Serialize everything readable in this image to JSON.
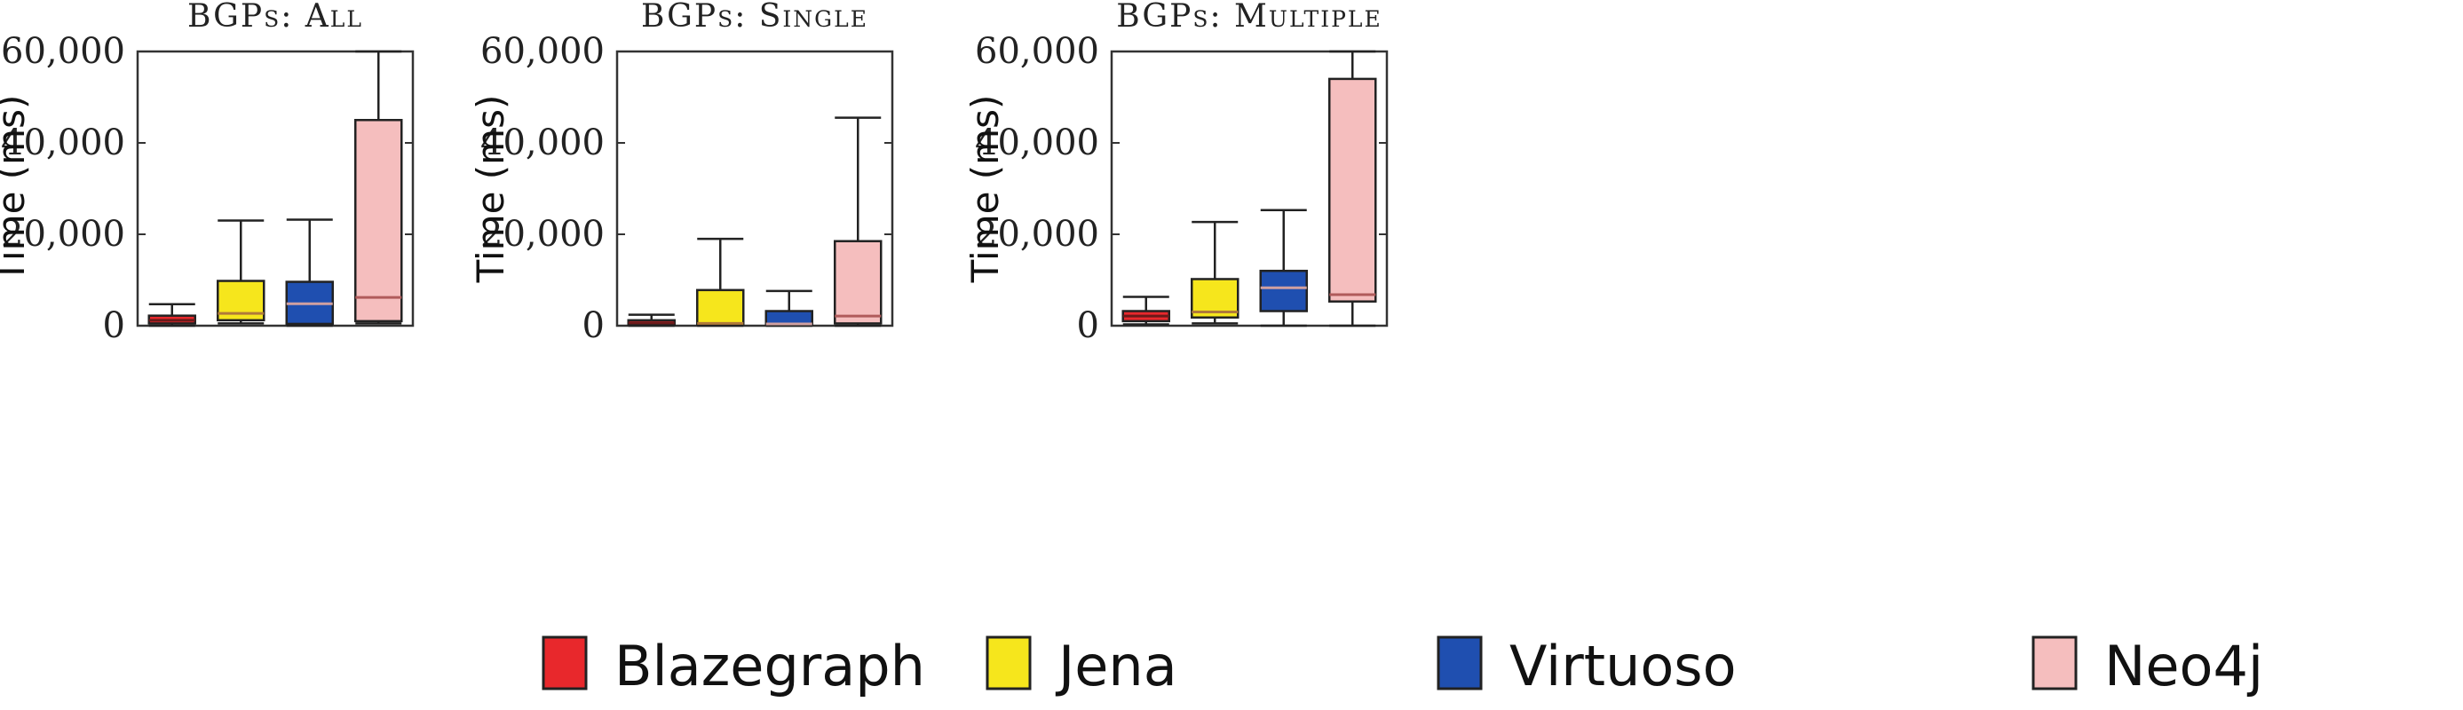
{
  "legend": [
    {
      "label": "Blazegraph",
      "color": "#e8282c"
    },
    {
      "label": "Jena",
      "color": "#f6e61c"
    },
    {
      "label": "Virtuoso",
      "color": "#1f4fb0"
    },
    {
      "label": "Neo4j",
      "color": "#f5bebe"
    }
  ],
  "chart_data": [
    {
      "type": "boxplot",
      "title": "BGPs: All",
      "ylabel": "Time (ms)",
      "ylim": [
        0,
        60000
      ],
      "yticks": [
        0,
        20000,
        40000,
        60000
      ],
      "ytick_labels": [
        "0",
        "20,000",
        "40,000",
        "60,000"
      ],
      "series": [
        {
          "name": "Blazegraph",
          "min": 0,
          "q1": 500,
          "median": 1200,
          "q3": 2200,
          "max": 4700
        },
        {
          "name": "Jena",
          "min": 500,
          "q1": 1200,
          "median": 2700,
          "q3": 9800,
          "max": 23000
        },
        {
          "name": "Virtuoso",
          "min": 0,
          "q1": 400,
          "median": 4800,
          "q3": 9600,
          "max": 23200
        },
        {
          "name": "Neo4j",
          "min": 500,
          "q1": 1000,
          "median": 6200,
          "q3": 45000,
          "max": 60000
        }
      ]
    },
    {
      "type": "boxplot",
      "title": "BGPs: Single",
      "ylabel": "Time (ms)",
      "ylim": [
        0,
        60000
      ],
      "yticks": [
        0,
        20000,
        40000,
        60000
      ],
      "ytick_labels": [
        "0",
        "20,000",
        "40,000",
        "60,000"
      ],
      "series": [
        {
          "name": "Blazegraph",
          "min": 0,
          "q1": 200,
          "median": 600,
          "q3": 1200,
          "max": 2400
        },
        {
          "name": "Jena",
          "min": 0,
          "q1": 300,
          "median": 500,
          "q3": 7800,
          "max": 19000
        },
        {
          "name": "Virtuoso",
          "min": 0,
          "q1": 200,
          "median": 400,
          "q3": 3200,
          "max": 7600
        },
        {
          "name": "Neo4j",
          "min": 0,
          "q1": 500,
          "median": 2100,
          "q3": 18500,
          "max": 45500
        }
      ]
    },
    {
      "type": "boxplot",
      "title": "BGPs: Multiple",
      "ylabel": "Time (ms)",
      "ylim": [
        0,
        60000
      ],
      "yticks": [
        0,
        20000,
        40000,
        60000
      ],
      "ytick_labels": [
        "0",
        "20,000",
        "40,000",
        "60,000"
      ],
      "series": [
        {
          "name": "Blazegraph",
          "min": 300,
          "q1": 1000,
          "median": 2100,
          "q3": 3200,
          "max": 6300
        },
        {
          "name": "Jena",
          "min": 500,
          "q1": 1800,
          "median": 3000,
          "q3": 10200,
          "max": 22700
        },
        {
          "name": "Virtuoso",
          "min": 0,
          "q1": 3200,
          "median": 8300,
          "q3": 12000,
          "max": 25300
        },
        {
          "name": "Neo4j",
          "min": 0,
          "q1": 5300,
          "median": 6800,
          "q3": 54000,
          "max": 60000
        }
      ]
    }
  ]
}
